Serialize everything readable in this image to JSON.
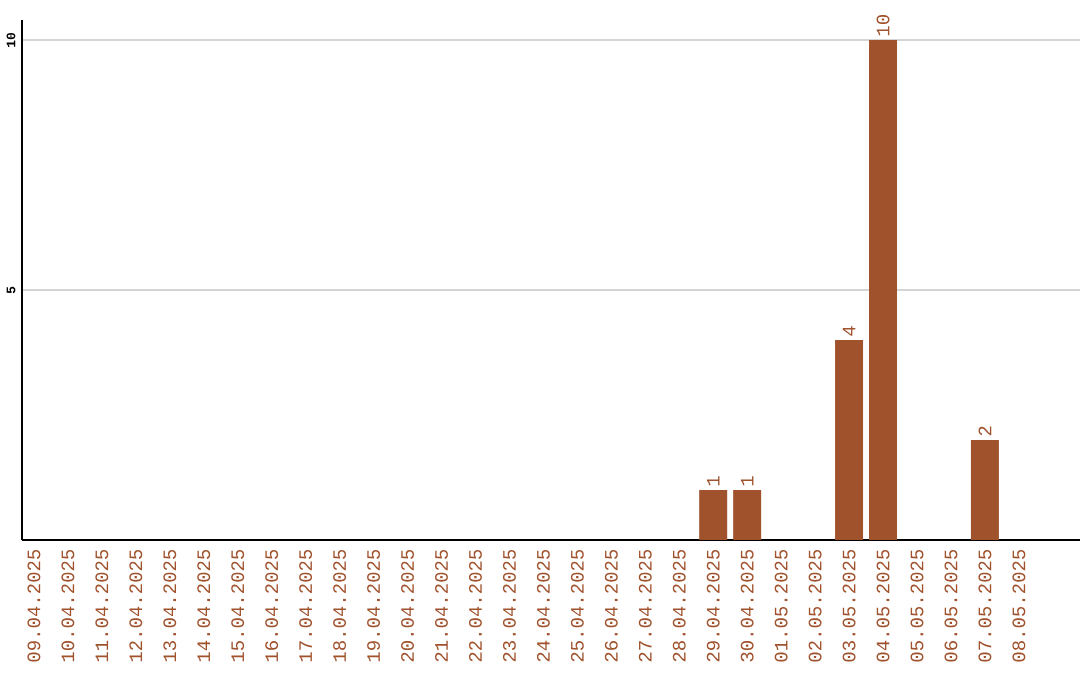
{
  "chart_data": {
    "type": "bar",
    "categories": [
      "09.04.2025",
      "10.04.2025",
      "11.04.2025",
      "12.04.2025",
      "13.04.2025",
      "14.04.2025",
      "15.04.2025",
      "16.04.2025",
      "17.04.2025",
      "18.04.2025",
      "19.04.2025",
      "20.04.2025",
      "21.04.2025",
      "22.04.2025",
      "23.04.2025",
      "24.04.2025",
      "25.04.2025",
      "26.04.2025",
      "27.04.2025",
      "28.04.2025",
      "29.04.2025",
      "30.04.2025",
      "01.05.2025",
      "02.05.2025",
      "03.05.2025",
      "04.05.2025",
      "05.05.2025",
      "06.05.2025",
      "07.05.2025",
      "08.05.2025"
    ],
    "values": [
      0,
      0,
      0,
      0,
      0,
      0,
      0,
      0,
      0,
      0,
      0,
      0,
      0,
      0,
      0,
      0,
      0,
      0,
      0,
      0,
      1,
      1,
      0,
      0,
      4,
      10,
      0,
      0,
      2,
      0
    ],
    "value_labels": [
      null,
      null,
      null,
      null,
      null,
      null,
      null,
      null,
      null,
      null,
      null,
      null,
      null,
      null,
      null,
      null,
      null,
      null,
      null,
      null,
      "1",
      "1",
      null,
      null,
      "4",
      "10",
      null,
      null,
      "2",
      null
    ],
    "color": "#a0522d",
    "ylim": [
      0,
      10.4
    ],
    "yticks": [
      5,
      10
    ],
    "grid": "y"
  }
}
